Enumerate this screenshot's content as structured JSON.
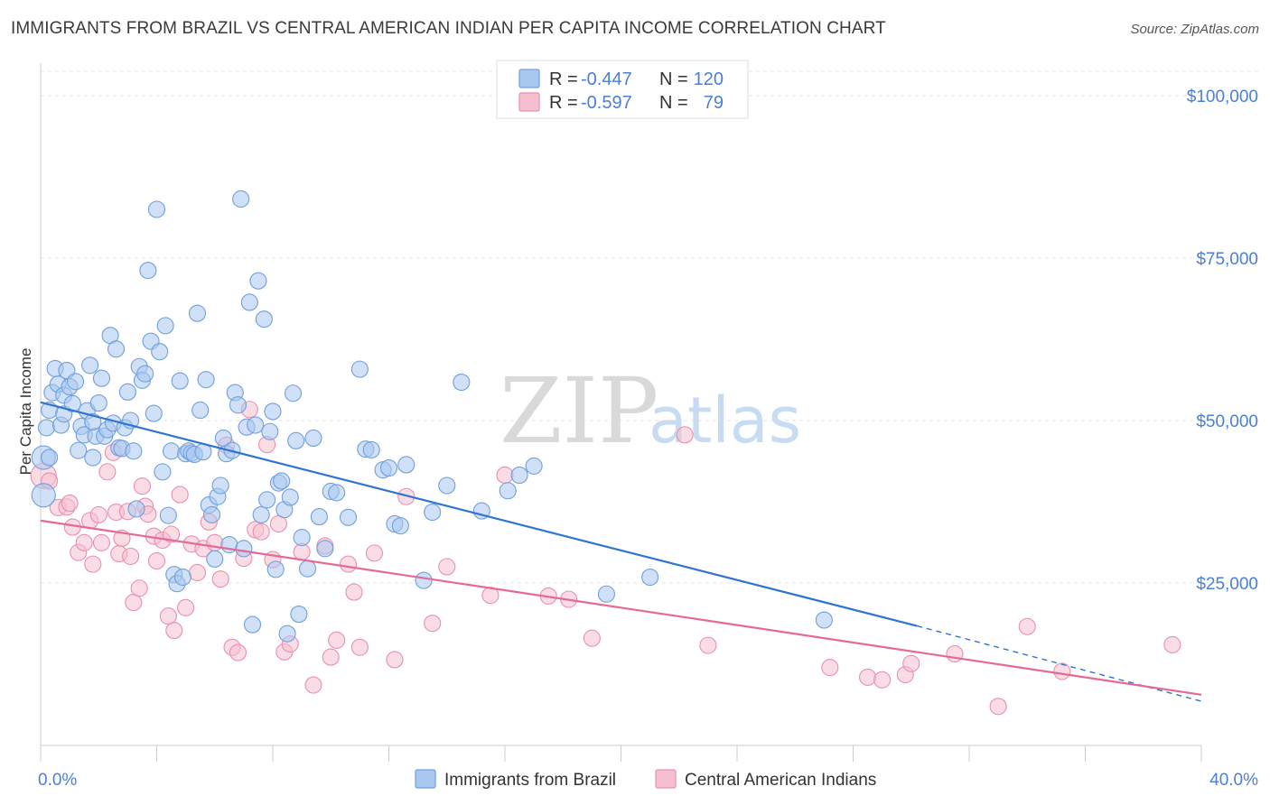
{
  "title": "IMMIGRANTS FROM BRAZIL VS CENTRAL AMERICAN INDIAN PER CAPITA INCOME CORRELATION CHART",
  "source": "Source: ZipAtlas.com",
  "watermark": {
    "zip": "ZIP",
    "atlas": "atlas"
  },
  "colors": {
    "blue_fill": "#a9c8f0",
    "blue_stroke": "#6f9fdc",
    "blue_line": "#2f74d0",
    "pink_fill": "#f6bfd0",
    "pink_stroke": "#ea8fae",
    "pink_line": "#e46a96",
    "tick_text": "#4a7fd6",
    "grid": "#e3e3e3"
  },
  "legend": {
    "rows": [
      {
        "r_label": "R =",
        "r_value": "-0.447",
        "n_label": "N =",
        "n_value": "120"
      },
      {
        "r_label": "R =",
        "r_value": "-0.597",
        "n_label": "N =",
        "n_value": "79"
      }
    ]
  },
  "chart_data": {
    "type": "scatter",
    "title": "IMMIGRANTS FROM BRAZIL VS CENTRAL AMERICAN INDIAN PER CAPITA INCOME CORRELATION CHART",
    "xlabel": "",
    "ylabel": "Per Capita Income",
    "xlim": [
      0,
      40
    ],
    "ylim": [
      0,
      105000
    ],
    "x_tick_labels": [
      "0.0%",
      "40.0%"
    ],
    "y_ticks": [
      25000,
      50000,
      75000,
      100000
    ],
    "y_tick_labels": [
      "$25,000",
      "$50,000",
      "$75,000",
      "$100,000"
    ],
    "grid": true,
    "legend_position": "top-center",
    "series": [
      {
        "name": "Immigrants from Brazil",
        "color": "#a9c8f0",
        "r": -0.447,
        "n": 120,
        "trend": {
          "x_start": 0,
          "y_start": 52800,
          "x_end": 30.2,
          "y_end": 18400,
          "dashed_to_x": 40,
          "dashed_to_y": 6800
        },
        "points": [
          [
            0.1,
            44300
          ],
          [
            0.1,
            38500
          ],
          [
            0.2,
            48900
          ],
          [
            0.3,
            51600
          ],
          [
            0.4,
            54300
          ],
          [
            0.5,
            58000
          ],
          [
            0.6,
            55600
          ],
          [
            0.7,
            49300
          ],
          [
            0.8,
            53900
          ],
          [
            0.8,
            51000
          ],
          [
            0.9,
            57700
          ],
          [
            1.0,
            55200
          ],
          [
            1.1,
            52600
          ],
          [
            1.2,
            56000
          ],
          [
            1.3,
            45400
          ],
          [
            1.4,
            49100
          ],
          [
            1.5,
            47800
          ],
          [
            1.6,
            51500
          ],
          [
            1.7,
            58500
          ],
          [
            1.8,
            44300
          ],
          [
            1.9,
            47600
          ],
          [
            2.0,
            52700
          ],
          [
            2.1,
            56500
          ],
          [
            2.2,
            47600
          ],
          [
            2.3,
            48600
          ],
          [
            2.4,
            63100
          ],
          [
            2.5,
            49600
          ],
          [
            2.6,
            61000
          ],
          [
            2.7,
            45800
          ],
          [
            2.8,
            45700
          ],
          [
            2.9,
            48900
          ],
          [
            3.0,
            54400
          ],
          [
            3.1,
            50000
          ],
          [
            3.2,
            45300
          ],
          [
            3.3,
            36400
          ],
          [
            3.4,
            58300
          ],
          [
            3.5,
            56200
          ],
          [
            3.6,
            57200
          ],
          [
            3.7,
            73100
          ],
          [
            3.8,
            62200
          ],
          [
            3.9,
            51100
          ],
          [
            4.0,
            82500
          ],
          [
            4.1,
            60600
          ],
          [
            4.2,
            42100
          ],
          [
            4.3,
            64600
          ],
          [
            4.4,
            35400
          ],
          [
            4.5,
            45300
          ],
          [
            4.6,
            26300
          ],
          [
            4.7,
            24900
          ],
          [
            4.8,
            56100
          ],
          [
            4.9,
            25900
          ],
          [
            5.0,
            44900
          ],
          [
            5.1,
            45300
          ],
          [
            5.2,
            45000
          ],
          [
            5.3,
            44800
          ],
          [
            5.4,
            66500
          ],
          [
            5.5,
            51600
          ],
          [
            5.6,
            45200
          ],
          [
            5.7,
            56300
          ],
          [
            5.8,
            37000
          ],
          [
            5.9,
            35500
          ],
          [
            6.0,
            28700
          ],
          [
            6.1,
            38300
          ],
          [
            6.2,
            40000
          ],
          [
            6.3,
            47300
          ],
          [
            6.4,
            44900
          ],
          [
            6.5,
            30900
          ],
          [
            6.6,
            45400
          ],
          [
            6.7,
            54300
          ],
          [
            6.8,
            52400
          ],
          [
            6.9,
            84100
          ],
          [
            7.0,
            30300
          ],
          [
            7.1,
            49000
          ],
          [
            7.2,
            68200
          ],
          [
            7.3,
            18600
          ],
          [
            7.4,
            49300
          ],
          [
            7.5,
            71500
          ],
          [
            7.6,
            35500
          ],
          [
            7.7,
            65600
          ],
          [
            7.8,
            37800
          ],
          [
            7.9,
            48300
          ],
          [
            8.0,
            51400
          ],
          [
            8.1,
            27100
          ],
          [
            8.2,
            40400
          ],
          [
            8.3,
            40700
          ],
          [
            8.4,
            36300
          ],
          [
            8.5,
            17200
          ],
          [
            8.6,
            38200
          ],
          [
            8.7,
            54200
          ],
          [
            8.8,
            46900
          ],
          [
            8.9,
            20200
          ],
          [
            9.0,
            32000
          ],
          [
            9.2,
            27200
          ],
          [
            9.4,
            47300
          ],
          [
            9.6,
            35200
          ],
          [
            9.8,
            30300
          ],
          [
            10.0,
            39100
          ],
          [
            10.2,
            38900
          ],
          [
            10.6,
            35100
          ],
          [
            11.0,
            57900
          ],
          [
            11.2,
            45600
          ],
          [
            11.4,
            45500
          ],
          [
            11.8,
            42400
          ],
          [
            12.0,
            42700
          ],
          [
            12.2,
            34100
          ],
          [
            12.4,
            33800
          ],
          [
            12.6,
            43200
          ],
          [
            13.2,
            25400
          ],
          [
            13.5,
            35900
          ],
          [
            14.0,
            40000
          ],
          [
            14.5,
            55900
          ],
          [
            15.2,
            36100
          ],
          [
            16.1,
            39200
          ],
          [
            16.5,
            41600
          ],
          [
            17.0,
            43000
          ],
          [
            19.5,
            23300
          ],
          [
            21.0,
            25900
          ],
          [
            27.0,
            19300
          ],
          [
            0.3,
            44300
          ],
          [
            1.8,
            49800
          ]
        ]
      },
      {
        "name": "Central American Indians",
        "color": "#f6bfd0",
        "r": -0.597,
        "n": 79,
        "trend": {
          "x_start": 0,
          "y_start": 34600,
          "x_end": 40,
          "y_end": 7800
        },
        "points": [
          [
            0.1,
            41500
          ],
          [
            0.3,
            40700
          ],
          [
            0.6,
            36600
          ],
          [
            0.9,
            36700
          ],
          [
            1.0,
            37300
          ],
          [
            1.1,
            33600
          ],
          [
            1.3,
            29700
          ],
          [
            1.5,
            31200
          ],
          [
            1.7,
            34600
          ],
          [
            1.8,
            27900
          ],
          [
            2.0,
            35500
          ],
          [
            2.1,
            31200
          ],
          [
            2.3,
            42100
          ],
          [
            2.5,
            45100
          ],
          [
            2.6,
            35900
          ],
          [
            2.7,
            29500
          ],
          [
            2.8,
            31900
          ],
          [
            3.0,
            36000
          ],
          [
            3.1,
            29100
          ],
          [
            3.2,
            22000
          ],
          [
            3.4,
            24200
          ],
          [
            3.5,
            39900
          ],
          [
            3.6,
            36800
          ],
          [
            3.7,
            35600
          ],
          [
            3.9,
            32200
          ],
          [
            4.0,
            28400
          ],
          [
            4.2,
            31600
          ],
          [
            4.4,
            19900
          ],
          [
            4.5,
            32500
          ],
          [
            4.6,
            17700
          ],
          [
            4.8,
            38600
          ],
          [
            5.0,
            21200
          ],
          [
            5.2,
            31000
          ],
          [
            5.4,
            26600
          ],
          [
            5.6,
            30300
          ],
          [
            5.8,
            34400
          ],
          [
            6.0,
            31200
          ],
          [
            6.2,
            25600
          ],
          [
            6.4,
            46200
          ],
          [
            6.6,
            15100
          ],
          [
            6.8,
            14300
          ],
          [
            7.0,
            28800
          ],
          [
            7.2,
            51700
          ],
          [
            7.4,
            33200
          ],
          [
            7.6,
            32900
          ],
          [
            7.8,
            46300
          ],
          [
            8.0,
            28600
          ],
          [
            8.2,
            34100
          ],
          [
            8.4,
            14400
          ],
          [
            8.6,
            15600
          ],
          [
            9.0,
            29800
          ],
          [
            9.4,
            9300
          ],
          [
            9.8,
            30700
          ],
          [
            10.0,
            13600
          ],
          [
            10.2,
            16200
          ],
          [
            10.6,
            27900
          ],
          [
            10.8,
            23600
          ],
          [
            11.0,
            15100
          ],
          [
            11.5,
            29600
          ],
          [
            12.2,
            13200
          ],
          [
            12.6,
            38300
          ],
          [
            13.5,
            18800
          ],
          [
            14.0,
            27500
          ],
          [
            15.5,
            23100
          ],
          [
            16.0,
            41600
          ],
          [
            17.5,
            23000
          ],
          [
            18.2,
            22500
          ],
          [
            19.0,
            16500
          ],
          [
            22.2,
            47800
          ],
          [
            23.0,
            15400
          ],
          [
            27.2,
            12000
          ],
          [
            28.5,
            10500
          ],
          [
            29.0,
            10100
          ],
          [
            29.8,
            10900
          ],
          [
            30.0,
            12600
          ],
          [
            31.5,
            14100
          ],
          [
            33.0,
            6000
          ],
          [
            34.0,
            18300
          ],
          [
            35.2,
            11400
          ],
          [
            39.0,
            15500
          ]
        ]
      }
    ]
  },
  "bottom_legend": [
    "Immigrants from Brazil",
    "Central American Indians"
  ]
}
